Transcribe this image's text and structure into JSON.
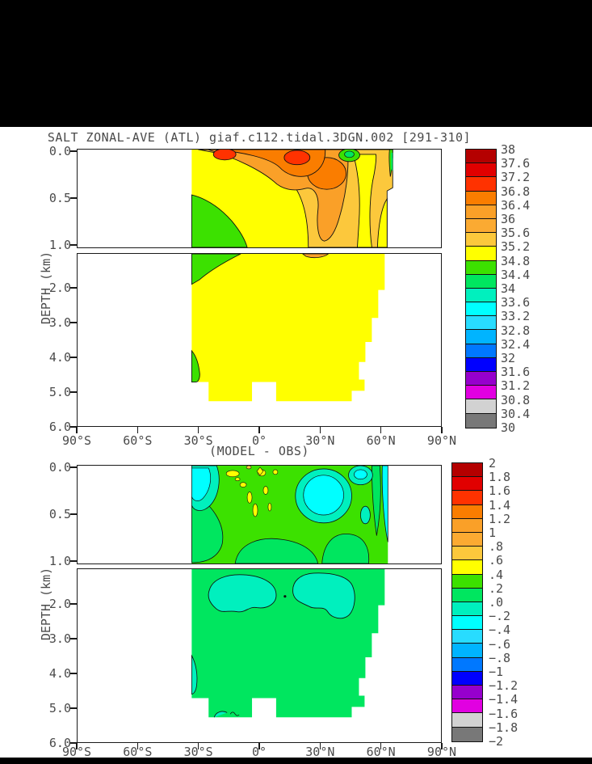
{
  "window": {
    "bg": "#000000",
    "canvas_bg": "#ffffff",
    "text_color": "#4a4a4a",
    "line_color": "#1a1a1a"
  },
  "palette": {
    "colors": [
      "#b40000",
      "#e10000",
      "#ff3200",
      "#fa7d00",
      "#faa028",
      "#fbaa32",
      "#fcc83c",
      "#ffff00",
      "#3ce100",
      "#00e65f",
      "#00f0be",
      "#00ffff",
      "#28dcff",
      "#00b4ff",
      "#0078ff",
      "#0000ff",
      "#9600cd",
      "#e100e1",
      "#d2d2d2",
      "#787878"
    ],
    "stipple_cell_color": "#d2d2d2"
  },
  "panels": [
    {
      "title": "SALT ZONAL-AVE (ATL) giaf.c112.tidal.3DGN.002 [291-310]",
      "ylabel": "DEPTH (km)",
      "y_ticks": [
        "0.0",
        "0.5",
        "1.0",
        "2.0",
        "3.0",
        "4.0",
        "5.0",
        "6.0"
      ],
      "x_ticks": [
        "90°S",
        "60°S",
        "30°S",
        "0°",
        "30°N",
        "60°N",
        "90°N"
      ],
      "colorbar_labels": [
        "38",
        "37.6",
        "37.2",
        "36.8",
        "36.4",
        "36",
        "35.6",
        "35.2",
        "34.8",
        "34.4",
        "34",
        "33.6",
        "33.2",
        "32.8",
        "32.4",
        "32",
        "31.6",
        "31.2",
        "30.8",
        "30.4",
        "30"
      ]
    },
    {
      "title": "(MODEL - OBS)",
      "ylabel": "DEPTH (km)",
      "y_ticks": [
        "0.0",
        "0.5",
        "1.0",
        "2.0",
        "3.0",
        "4.0",
        "5.0",
        "6.0"
      ],
      "x_ticks": [
        "90°S",
        "60°S",
        "30°S",
        "0°",
        "30°N",
        "60°N",
        "90°N"
      ],
      "colorbar_labels": [
        "2",
        "1.8",
        "1.6",
        "1.4",
        "1.2",
        "1",
        ".8",
        ".6",
        ".4",
        ".2",
        ".0",
        "−.2",
        "−.4",
        "−.6",
        "−.8",
        "−1",
        "−1.2",
        "−1.4",
        "−1.6",
        "−1.8",
        "−2"
      ]
    }
  ],
  "chart_data": [
    {
      "type": "filled-contour",
      "title": "SALT ZONAL-AVE (ATL) giaf.c112.tidal.3DGN.002 [291-310]",
      "quantity": "zonal-average salinity, Atlantic basin (psu)",
      "x": {
        "ticks": [
          "90°S",
          "60°S",
          "30°S",
          "0°",
          "30°N",
          "60°N",
          "90°N"
        ],
        "range_deg": [
          -90,
          90
        ]
      },
      "y": {
        "label": "DEPTH (km)",
        "upper_box_km": [
          0.0,
          1.0
        ],
        "upper_ticks": [
          0.0,
          0.5,
          1.0
        ],
        "lower_box_km": [
          1.0,
          6.0
        ],
        "lower_ticks": [
          2.0,
          3.0,
          4.0,
          5.0,
          6.0
        ]
      },
      "levels": [
        30,
        30.4,
        30.8,
        31.2,
        31.6,
        32,
        32.4,
        32.8,
        33.2,
        33.6,
        34,
        34.4,
        34.8,
        35.2,
        35.6,
        36,
        36.4,
        36.8,
        37.2,
        37.6,
        38
      ],
      "legend_position": "right",
      "grid": false,
      "data_coverage": {
        "lat_deg": [
          -34,
          66
        ],
        "depth_km": [
          0,
          5.4
        ]
      },
      "features": [
        "surface salinity maxima >37.2 (red) in subtropical gyres near 20°S and 22°N",
        "broad 35.6-36.8 (orange) surface band from 30°S to 45°N, deepening to ~0.9 km around 25-35°N",
        "fresh <34.8 (green) intermediate water below ~0.4 km south of 10°S, and at the surface near 45°N and 65°N",
        "deep basin nearly uniform 34.8-35.2 (yellow) from 1 km down to the sea floor",
        "white = no data: outside Atlantic mask (south of ~34°S, north of ~66°N) and below the ragged sea-floor line near 5.4 km"
      ]
    },
    {
      "type": "filled-contour",
      "title": "(MODEL - OBS)",
      "quantity": "model minus observed salinity (psu)",
      "x": {
        "ticks": [
          "90°S",
          "60°S",
          "30°S",
          "0°",
          "30°N",
          "60°N",
          "90°N"
        ],
        "range_deg": [
          -90,
          90
        ]
      },
      "y": {
        "label": "DEPTH (km)",
        "upper_box_km": [
          0.0,
          1.0
        ],
        "upper_ticks": [
          0.0,
          0.5,
          1.0
        ],
        "lower_box_km": [
          1.0,
          6.0
        ],
        "lower_ticks": [
          2.0,
          3.0,
          4.0,
          5.0,
          6.0
        ]
      },
      "levels": [
        -2,
        -1.8,
        -1.6,
        -1.4,
        -1.2,
        -1,
        -0.8,
        -0.6,
        -0.4,
        -0.2,
        0,
        0.2,
        0.4,
        0.6,
        0.8,
        1,
        1.2,
        1.4,
        1.6,
        1.8,
        2
      ],
      "legend_position": "right",
      "grid": false,
      "data_coverage": {
        "lat_deg": [
          -34,
          66
        ],
        "depth_km": [
          0,
          5.4
        ]
      },
      "features": [
        "bias mostly 0 to +0.4 (greens) throughout the section",
        "negative bias 0 to -0.6 (cyan) near the surface around 30°S, 25-40°N and 55-65°N",
        "small positive spots +0.4 to +0.6 (yellow) in the upper 0.6 km between 15°S and 0°",
        "weak negative patches 0 to -0.2 (turquoise) at 1.2-2.4 km depth near 20°S-5°N and 15-45°N",
        "white = no data, same mask/sea-floor shape as upper panel"
      ]
    }
  ]
}
